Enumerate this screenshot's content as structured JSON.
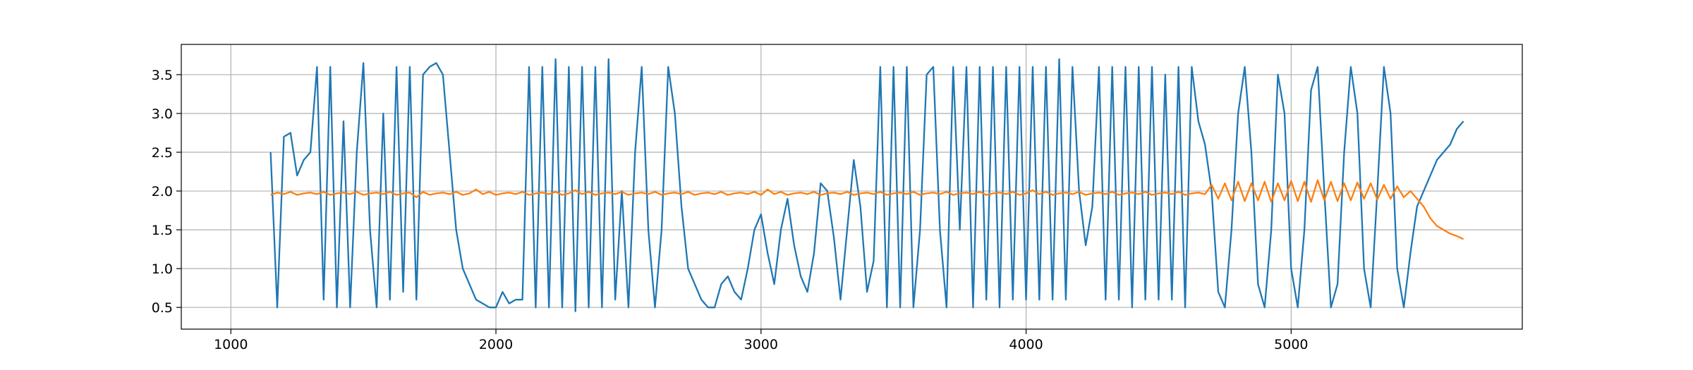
{
  "chart_data": {
    "type": "line",
    "x": [
      1150,
      1175,
      1200,
      1225,
      1250,
      1275,
      1300,
      1325,
      1350,
      1375,
      1400,
      1425,
      1450,
      1475,
      1500,
      1525,
      1550,
      1575,
      1600,
      1625,
      1650,
      1675,
      1700,
      1725,
      1750,
      1775,
      1800,
      1825,
      1850,
      1875,
      1900,
      1925,
      1950,
      1975,
      2000,
      2025,
      2050,
      2075,
      2100,
      2125,
      2150,
      2175,
      2200,
      2225,
      2250,
      2275,
      2300,
      2325,
      2350,
      2375,
      2400,
      2425,
      2450,
      2475,
      2500,
      2525,
      2550,
      2575,
      2600,
      2625,
      2650,
      2675,
      2700,
      2725,
      2750,
      2775,
      2800,
      2825,
      2850,
      2875,
      2900,
      2925,
      2950,
      2975,
      3000,
      3025,
      3050,
      3075,
      3100,
      3125,
      3150,
      3175,
      3200,
      3225,
      3250,
      3275,
      3300,
      3325,
      3350,
      3375,
      3400,
      3425,
      3450,
      3475,
      3500,
      3525,
      3550,
      3575,
      3600,
      3625,
      3650,
      3675,
      3700,
      3725,
      3750,
      3775,
      3800,
      3825,
      3850,
      3875,
      3900,
      3925,
      3950,
      3975,
      4000,
      4025,
      4050,
      4075,
      4100,
      4125,
      4150,
      4175,
      4200,
      4225,
      4250,
      4275,
      4300,
      4325,
      4350,
      4375,
      4400,
      4425,
      4450,
      4475,
      4500,
      4525,
      4550,
      4575,
      4600,
      4625,
      4650,
      4675,
      4700,
      4725,
      4750,
      4775,
      4800,
      4825,
      4850,
      4875,
      4900,
      4925,
      4950,
      4975,
      5000,
      5025,
      5050,
      5075,
      5100,
      5125,
      5150,
      5175,
      5200,
      5225,
      5250,
      5275,
      5300,
      5325,
      5350,
      5375,
      5400,
      5425,
      5450,
      5475,
      5500,
      5525,
      5550,
      5575,
      5600,
      5625,
      5650
    ],
    "series": [
      {
        "color": "#1f77b4",
        "values": [
          2.5,
          0.5,
          2.7,
          2.75,
          2.2,
          2.4,
          2.5,
          3.6,
          0.6,
          3.6,
          0.5,
          2.9,
          0.5,
          2.5,
          3.65,
          1.5,
          0.5,
          3.0,
          0.6,
          3.6,
          0.7,
          3.6,
          0.6,
          3.5,
          3.6,
          3.65,
          3.5,
          2.5,
          1.5,
          1.0,
          0.8,
          0.6,
          0.55,
          0.5,
          0.5,
          0.7,
          0.55,
          0.6,
          0.6,
          3.6,
          0.5,
          3.6,
          0.5,
          3.7,
          0.5,
          3.6,
          0.45,
          3.6,
          0.5,
          3.6,
          0.5,
          3.7,
          0.6,
          2.0,
          0.5,
          2.5,
          3.6,
          1.5,
          0.5,
          1.5,
          3.6,
          3.0,
          1.8,
          1.0,
          0.8,
          0.6,
          0.5,
          0.5,
          0.8,
          0.9,
          0.7,
          0.6,
          1.0,
          1.5,
          1.7,
          1.2,
          0.8,
          1.5,
          1.9,
          1.3,
          0.9,
          0.7,
          1.2,
          2.1,
          2.0,
          1.4,
          0.6,
          1.5,
          2.4,
          1.8,
          0.7,
          1.1,
          3.6,
          0.5,
          3.6,
          0.5,
          3.6,
          0.5,
          1.5,
          3.5,
          3.6,
          1.5,
          0.5,
          3.6,
          1.5,
          3.6,
          0.5,
          3.6,
          0.6,
          3.6,
          0.5,
          3.6,
          0.6,
          3.6,
          0.6,
          3.6,
          0.6,
          3.6,
          0.6,
          3.7,
          0.6,
          3.6,
          2.0,
          1.3,
          1.8,
          3.6,
          0.6,
          3.6,
          0.6,
          3.6,
          0.5,
          3.6,
          0.6,
          3.6,
          0.6,
          3.5,
          0.6,
          3.6,
          0.5,
          3.6,
          2.9,
          2.6,
          2.0,
          0.7,
          0.5,
          1.5,
          3.0,
          3.6,
          2.5,
          0.8,
          0.5,
          1.5,
          3.5,
          3.0,
          1.0,
          0.5,
          1.5,
          3.3,
          3.6,
          2.0,
          0.5,
          0.8,
          2.5,
          3.6,
          3.0,
          1.0,
          0.5,
          2.0,
          3.6,
          3.0,
          1.0,
          0.5,
          1.2,
          1.8,
          2.0,
          2.2,
          2.4,
          2.5,
          2.6,
          2.8,
          2.9
        ]
      },
      {
        "color": "#ff7f0e",
        "values": [
          1.95,
          1.98,
          1.96,
          1.99,
          1.95,
          1.97,
          1.98,
          1.96,
          1.99,
          1.95,
          1.97,
          1.98,
          1.96,
          1.99,
          1.95,
          1.97,
          1.98,
          1.96,
          1.99,
          1.95,
          1.97,
          1.98,
          1.92,
          1.99,
          1.95,
          1.97,
          1.98,
          1.96,
          1.99,
          1.95,
          1.97,
          2.02,
          1.96,
          1.99,
          1.95,
          1.97,
          1.98,
          1.96,
          1.99,
          1.95,
          1.97,
          1.98,
          1.96,
          1.99,
          1.95,
          1.97,
          2.01,
          1.96,
          1.99,
          1.95,
          1.97,
          1.98,
          1.96,
          1.99,
          1.95,
          1.97,
          1.98,
          1.96,
          1.99,
          1.95,
          1.97,
          1.98,
          1.96,
          1.99,
          1.95,
          1.97,
          1.98,
          1.96,
          1.99,
          1.95,
          1.97,
          1.98,
          1.96,
          1.99,
          1.95,
          2.02,
          1.96,
          1.99,
          1.95,
          1.97,
          1.98,
          1.96,
          1.99,
          1.95,
          1.97,
          1.98,
          1.96,
          1.99,
          1.95,
          1.97,
          1.98,
          1.96,
          1.99,
          1.95,
          1.97,
          1.98,
          1.96,
          1.99,
          1.95,
          1.97,
          1.98,
          1.96,
          1.99,
          1.95,
          1.97,
          1.98,
          1.96,
          1.99,
          1.95,
          1.97,
          1.98,
          1.96,
          1.99,
          1.95,
          1.97,
          2.01,
          1.96,
          1.99,
          1.95,
          1.97,
          1.98,
          1.96,
          1.99,
          1.95,
          1.97,
          1.98,
          1.96,
          1.99,
          1.95,
          1.97,
          1.98,
          1.96,
          1.99,
          1.95,
          1.97,
          1.98,
          1.96,
          1.99,
          1.95,
          1.97,
          1.98,
          1.96,
          2.08,
          1.9,
          2.1,
          1.88,
          2.12,
          1.87,
          2.1,
          1.88,
          2.12,
          1.86,
          2.1,
          1.88,
          2.13,
          1.87,
          2.12,
          1.86,
          2.14,
          1.88,
          2.12,
          1.87,
          2.1,
          1.88,
          2.11,
          1.9,
          2.1,
          1.89,
          2.08,
          1.9,
          2.06,
          1.92,
          2.0,
          1.9,
          1.8,
          1.65,
          1.55,
          1.5,
          1.45,
          1.42,
          1.38
        ]
      }
    ],
    "xlim": [
      813,
      5872
    ],
    "ylim": [
      0.22,
      3.89
    ],
    "xticks": [
      1000,
      2000,
      3000,
      4000,
      5000
    ],
    "yticks": [
      0.5,
      {
        "value": 1.0,
        "label": "1.0"
      },
      1.5,
      {
        "value": 2.0,
        "label": "2.0"
      },
      2.5,
      {
        "value": 3.0,
        "label": "3.0"
      },
      3.5
    ],
    "grid": true
  }
}
